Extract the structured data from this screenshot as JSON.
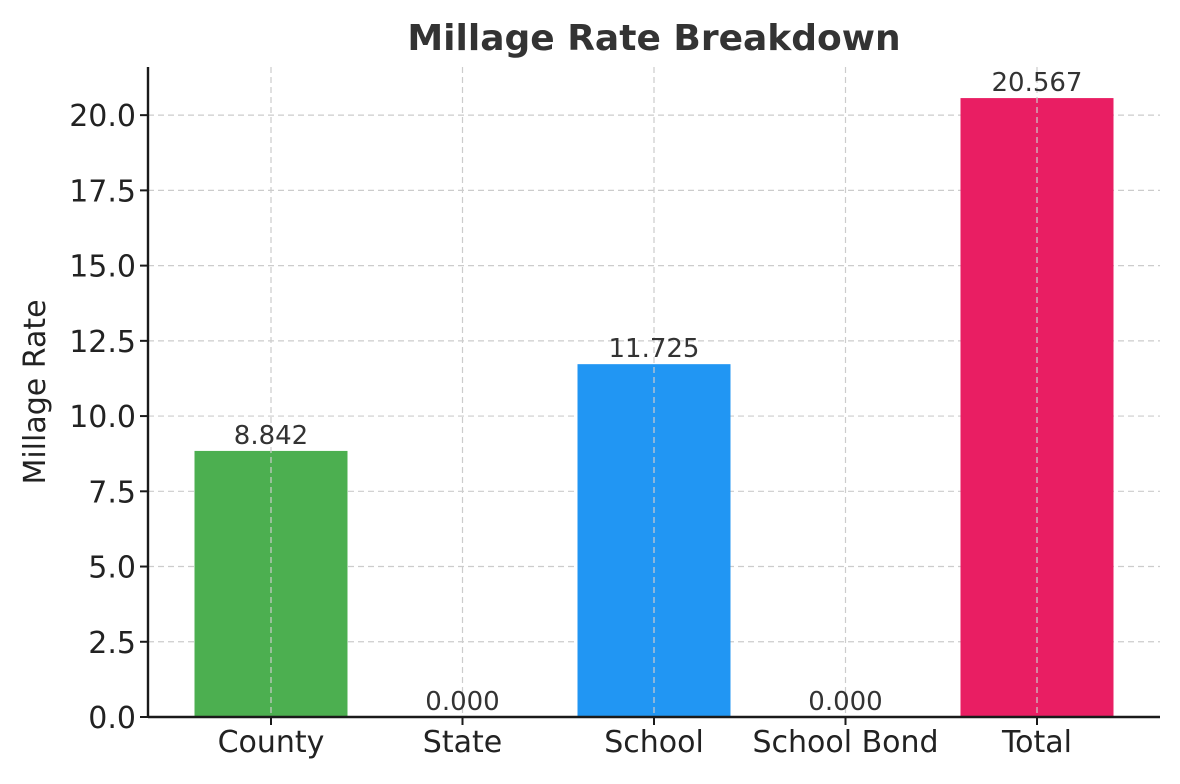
{
  "chart_data": {
    "type": "bar",
    "title": "Millage Rate Breakdown",
    "xlabel": "",
    "ylabel": "Millage Rate",
    "categories": [
      "County",
      "State",
      "School",
      "School Bond",
      "Total"
    ],
    "values": [
      8.842,
      0.0,
      11.725,
      0.0,
      20.567
    ],
    "value_labels": [
      "8.842",
      "0.000",
      "11.725",
      "0.000",
      "20.567"
    ],
    "colors": [
      "#4CAF50",
      "#FFC107",
      "#2196F3",
      "#9C27B0",
      "#E91E63"
    ],
    "ylim": [
      0,
      21.6
    ],
    "yticks": [
      0,
      2.5,
      5,
      7.5,
      10,
      12.5,
      15,
      17.5,
      20
    ],
    "ytick_labels": [
      "0.0",
      "2.5",
      "5.0",
      "7.5",
      "10.0",
      "12.5",
      "15.0",
      "17.5",
      "20.0"
    ],
    "grid": true,
    "legend": false
  }
}
